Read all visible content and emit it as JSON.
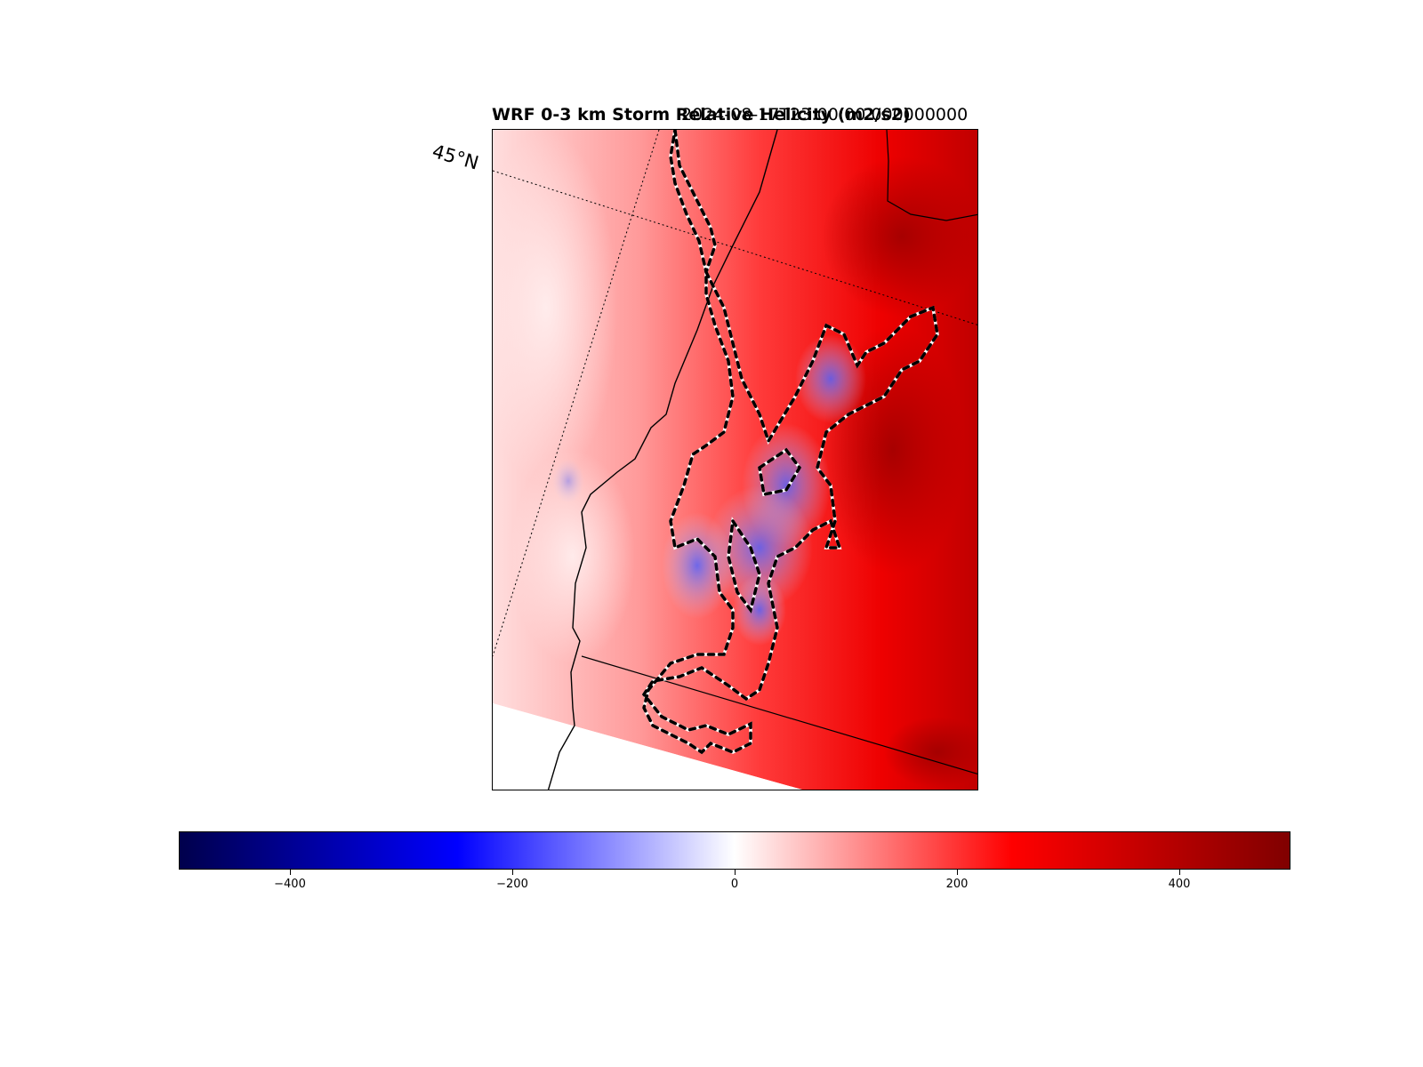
{
  "figure": {
    "title": "WRF 0-3 km Storm Relative Helicity (m2/s2)",
    "timestamp": "2024-08-17T23:00:00.000000000"
  },
  "map": {
    "gridline_labels": [
      "45°N"
    ],
    "colors": {
      "background_field": "#ff3030",
      "contour_dash_a": "#000000",
      "contour_dash_b": "#ffffff",
      "coastline": "#000000"
    }
  },
  "colorbar": {
    "colormap": "seismic",
    "vmin": -500,
    "vmax": 500,
    "ticks": [
      -400,
      -200,
      0,
      200,
      400
    ],
    "tick_labels": [
      "−400",
      "−200",
      "0",
      "200",
      "400"
    ],
    "colors": [
      "#00004c",
      "#0000ff",
      "#ffffff",
      "#ff0000",
      "#800000"
    ]
  }
}
